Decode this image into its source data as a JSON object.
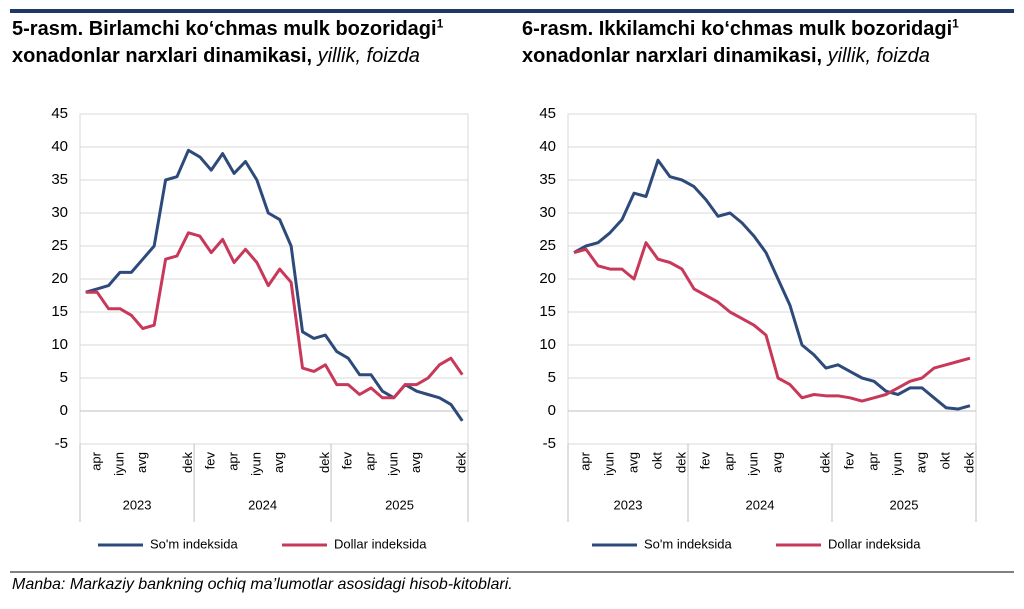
{
  "chart_data": [
    {
      "type": "line",
      "title": "5-rasm. Birlamchi ko‘chmas mulk bozoridagi",
      "title_footnote": "1",
      "title_rest": "xonadonlar narxlari dinamikasi,",
      "subtitle": "yillik, foizda",
      "categories": [
        null,
        "apr",
        null,
        "iyun",
        null,
        "avg",
        null,
        null,
        null,
        "dek",
        null,
        "fev",
        null,
        "apr",
        null,
        "iyun",
        null,
        "avg",
        null,
        null,
        null,
        "dek",
        null,
        "fev",
        null,
        "apr",
        null,
        "iyun",
        null,
        "avg",
        null,
        null,
        null,
        "dek"
      ],
      "groups": [
        "2023",
        "2024",
        "2025"
      ],
      "ylim": [
        -5,
        45
      ],
      "yticks": [
        -5,
        0,
        5,
        10,
        15,
        20,
        25,
        30,
        35,
        40,
        45
      ],
      "grid": true,
      "series": [
        {
          "name": "So'm indeksida",
          "color": "#2e4a7a",
          "values": [
            18,
            18.5,
            19,
            21,
            21,
            23,
            25,
            35,
            35.5,
            39.5,
            38.5,
            36.5,
            39,
            36,
            37.8,
            35,
            30,
            29,
            25,
            12,
            11,
            11.5,
            9,
            8,
            5.5,
            5.5,
            3,
            2,
            4,
            3,
            2.5,
            2,
            1,
            -1.5
          ]
        },
        {
          "name": "Dollar indeksida",
          "color": "#c8385a",
          "values": [
            18,
            18,
            15.5,
            15.5,
            14.5,
            12.5,
            13,
            23,
            23.5,
            27,
            26.5,
            24,
            26,
            22.5,
            24.5,
            22.5,
            19,
            21.5,
            19.5,
            6.5,
            6,
            7,
            4,
            4,
            2.5,
            3.5,
            2,
            2,
            4,
            4,
            5,
            7,
            8,
            5.5
          ]
        }
      ]
    },
    {
      "type": "line",
      "title": "6-rasm. Ikkilamchi ko‘chmas mulk bozoridagi",
      "title_footnote": "1",
      "title_rest": "xonadonlar narxlari dinamikasi,",
      "subtitle": "yillik, foizda",
      "categories": [
        null,
        "apr",
        null,
        "iyun",
        null,
        "avg",
        null,
        "okt",
        null,
        "dek",
        null,
        "fev",
        null,
        "apr",
        null,
        "iyun",
        null,
        "avg",
        null,
        null,
        null,
        "dek",
        null,
        "fev",
        null,
        "apr",
        null,
        "iyun",
        null,
        "avg",
        null,
        "okt",
        null,
        "dek"
      ],
      "groups": [
        "2023",
        "2024",
        "2025"
      ],
      "ylim": [
        -5,
        45
      ],
      "yticks": [
        -5,
        0,
        5,
        10,
        15,
        20,
        25,
        30,
        35,
        40,
        45
      ],
      "grid": true,
      "series": [
        {
          "name": "So'm indeksida",
          "color": "#2e4a7a",
          "values": [
            24,
            25,
            25.5,
            27,
            29,
            33,
            32.5,
            38,
            35.5,
            35,
            34,
            32,
            29.5,
            30,
            28.5,
            26.5,
            24,
            20,
            16,
            10,
            8.5,
            6.5,
            7,
            6,
            5,
            4.5,
            3,
            2.5,
            3.5,
            3.5,
            2,
            0.5,
            0.3,
            0.8
          ]
        },
        {
          "name": "Dollar indeksida",
          "color": "#c8385a",
          "values": [
            24,
            24.5,
            22,
            21.5,
            21.5,
            20,
            25.5,
            23,
            22.5,
            21.5,
            18.5,
            17.5,
            16.5,
            15,
            14,
            13,
            11.5,
            5,
            4,
            2,
            2.5,
            2.3,
            2.3,
            2,
            1.5,
            2,
            2.5,
            3.5,
            4.5,
            5,
            6.5,
            7,
            7.5,
            8
          ]
        }
      ]
    }
  ],
  "source": "Manba: Markaziy bankning ochiq ma’lumotlar asosidagi hisob-kitoblari."
}
